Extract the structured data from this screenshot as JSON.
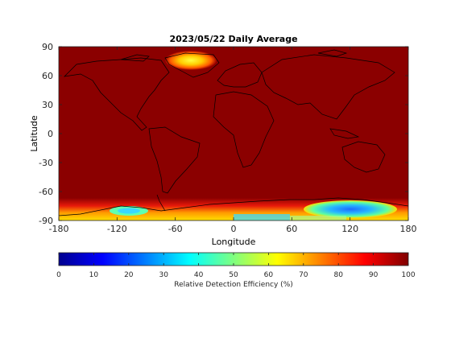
{
  "title": "2023/05/22 Daily Average",
  "xlabel": "Longitude",
  "ylabel": "Latitude",
  "x_ticks": [
    "-180",
    "-120",
    "-60",
    "0",
    "60",
    "120",
    "180"
  ],
  "y_ticks": [
    "90",
    "60",
    "30",
    "0",
    "-30",
    "-60",
    "-90"
  ],
  "colorbar": {
    "label": "Relative Detection Efficiency (%)",
    "ticks": [
      "0",
      "10",
      "20",
      "30",
      "40",
      "50",
      "60",
      "70",
      "80",
      "90",
      "100"
    ],
    "colormap": "jet"
  },
  "chart_data": {
    "type": "heatmap",
    "title": "2023/05/22 Daily Average",
    "xlabel": "Longitude",
    "ylabel": "Latitude",
    "xlim": [
      -180,
      180
    ],
    "ylim": [
      -90,
      90
    ],
    "colorbar_range": [
      0,
      100
    ],
    "colorbar_label": "Relative Detection Efficiency (%)",
    "background_value": 100
  }
}
